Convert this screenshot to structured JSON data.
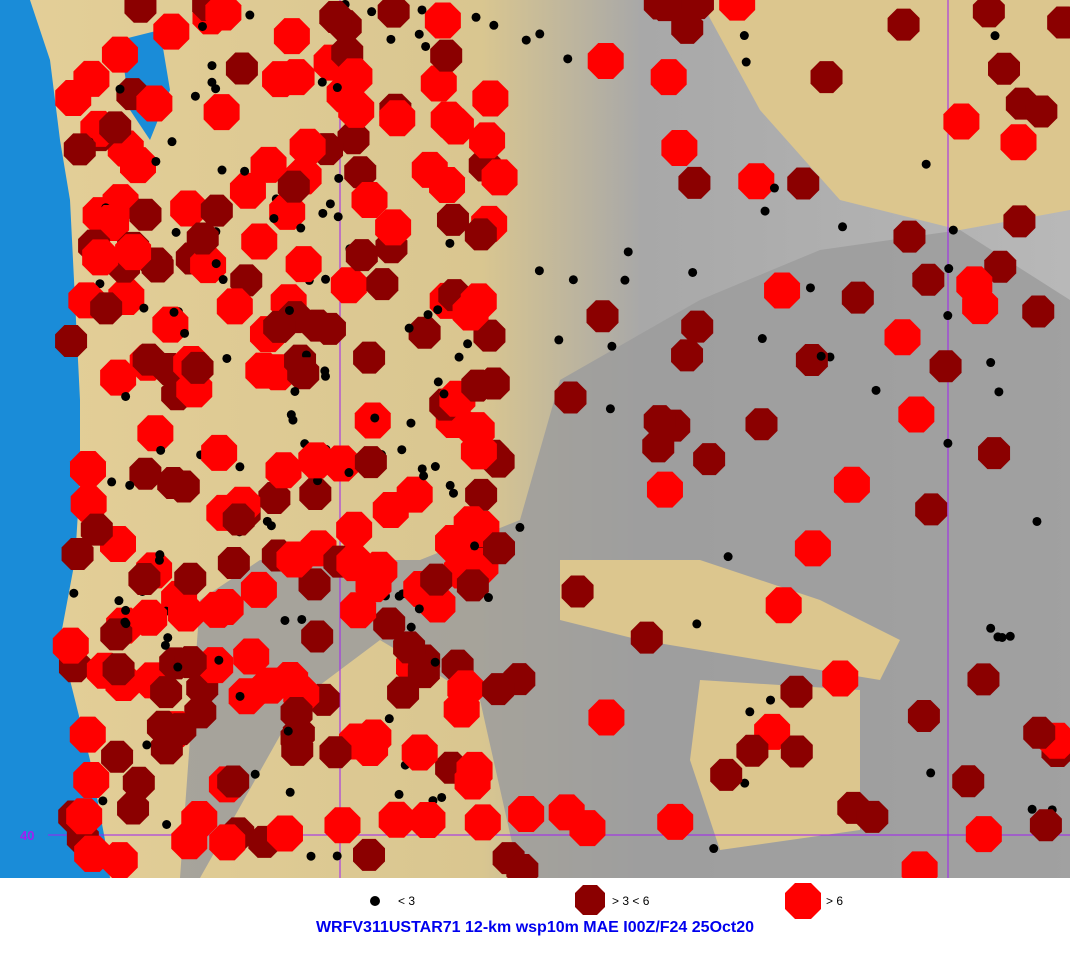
{
  "map": {
    "lat_label": "40",
    "colors": {
      "ocean": "#1a8cd8",
      "lowland": "#dcc68e",
      "mountain": "#9a9a9a",
      "grid": "#a020f0",
      "small": "#000000",
      "medium": "#8b0000",
      "large": "#ff0000"
    }
  },
  "legend": {
    "items": [
      {
        "symbol": "black-dot",
        "label": "< 3"
      },
      {
        "symbol": "dark-red-octagon",
        "label": "> 3 < 6"
      },
      {
        "symbol": "red-octagon",
        "label": "> 6"
      }
    ]
  },
  "title": "WRFV311USTAR71 12-km wsp10m MAE I00Z/F24 25Oct20"
}
